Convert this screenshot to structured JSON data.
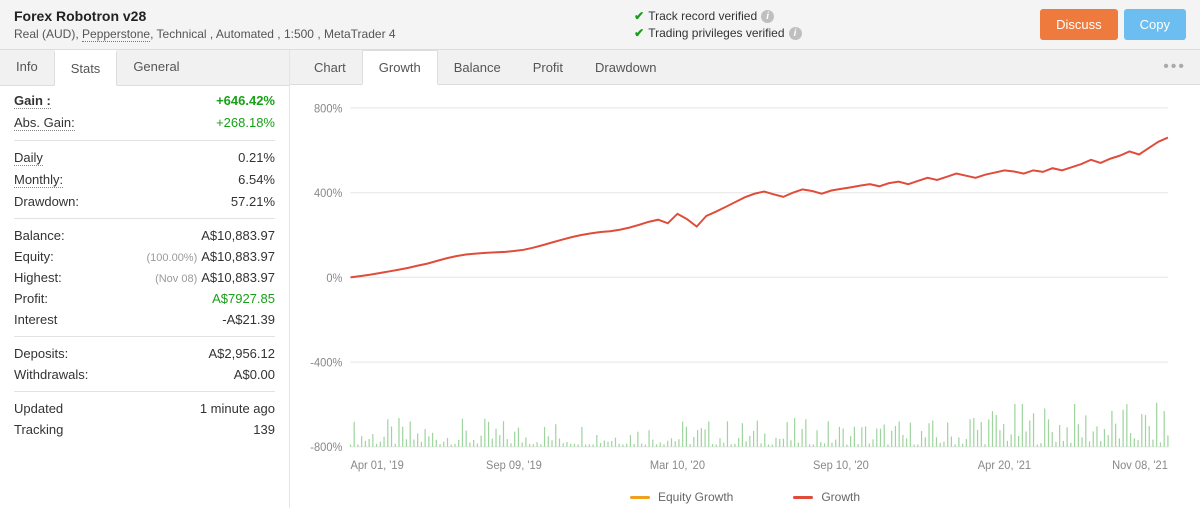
{
  "header": {
    "title": "Forex Robotron v28",
    "account_type": "Real (AUD),",
    "broker": "Pepperstone",
    "meta_suffix": ", Technical , Automated , 1:500 , MetaTrader 4",
    "verif1": "Track record verified",
    "verif2": "Trading privileges verified",
    "discuss": "Discuss",
    "copy": "Copy"
  },
  "side_tabs": {
    "info": "Info",
    "stats": "Stats",
    "general": "General",
    "active": "stats"
  },
  "stats": {
    "gain_label": "Gain :",
    "gain_value": "+646.42%",
    "abs_gain_label": "Abs. Gain:",
    "abs_gain_value": "+268.18%",
    "daily_label": "Daily",
    "daily_value": "0.21%",
    "monthly_label": "Monthly:",
    "monthly_value": "6.54%",
    "drawdown_label": "Drawdown:",
    "drawdown_value": "57.21%",
    "balance_label": "Balance:",
    "balance_value": "A$10,883.97",
    "equity_label": "Equity:",
    "equity_note": "(100.00%)",
    "equity_value": "A$10,883.97",
    "highest_label": "Highest:",
    "highest_note": "(Nov 08)",
    "highest_value": "A$10,883.97",
    "profit_label": "Profit:",
    "profit_value": "A$7927.85",
    "interest_label": "Interest",
    "interest_value": "-A$21.39",
    "deposits_label": "Deposits:",
    "deposits_value": "A$2,956.12",
    "withdrawals_label": "Withdrawals:",
    "withdrawals_value": "A$0.00",
    "updated_label": "Updated",
    "updated_value": "1 minute ago",
    "tracking_label": "Tracking",
    "tracking_value": "139"
  },
  "chart_tabs": {
    "chart": "Chart",
    "growth": "Growth",
    "balance": "Balance",
    "profit": "Profit",
    "drawdown": "Drawdown",
    "active": "growth"
  },
  "chart": {
    "type": "line",
    "ylim": [
      -800,
      800
    ],
    "ytick_step": 400,
    "ytick_labels": [
      "800%",
      "400%",
      "0%",
      "-400%",
      "-800%"
    ],
    "x_labels": [
      "Apr 01, '19",
      "Sep 09, '19",
      "Mar 10, '20",
      "Sep 10, '20",
      "Apr 20, '21",
      "Nov 08, '21"
    ],
    "colors": {
      "growth": "#e04b3a",
      "equity": "#f0a020",
      "volume": "#9ed49e",
      "grid": "#e8e8e8",
      "axis_text": "#888888",
      "background": "#ffffff"
    },
    "growth_series": [
      0,
      6,
      12,
      20,
      28,
      36,
      45,
      55,
      65,
      78,
      90,
      100,
      108,
      112,
      116,
      118,
      120,
      124,
      130,
      140,
      152,
      165,
      178,
      190,
      200,
      208,
      214,
      218,
      225,
      235,
      248,
      262,
      272,
      255,
      300,
      275,
      240,
      290,
      310,
      332,
      355,
      378,
      395,
      405,
      392,
      380,
      400,
      415,
      408,
      395,
      410,
      418,
      425,
      433,
      440,
      430,
      445,
      452,
      440,
      455,
      470,
      460,
      475,
      490,
      480,
      470,
      485,
      495,
      505,
      500,
      490,
      505,
      498,
      515,
      505,
      520,
      535,
      555,
      540,
      560,
      575,
      595,
      580,
      610,
      640,
      660
    ],
    "legend": {
      "equity": "Equity Growth",
      "growth": "Growth"
    }
  }
}
